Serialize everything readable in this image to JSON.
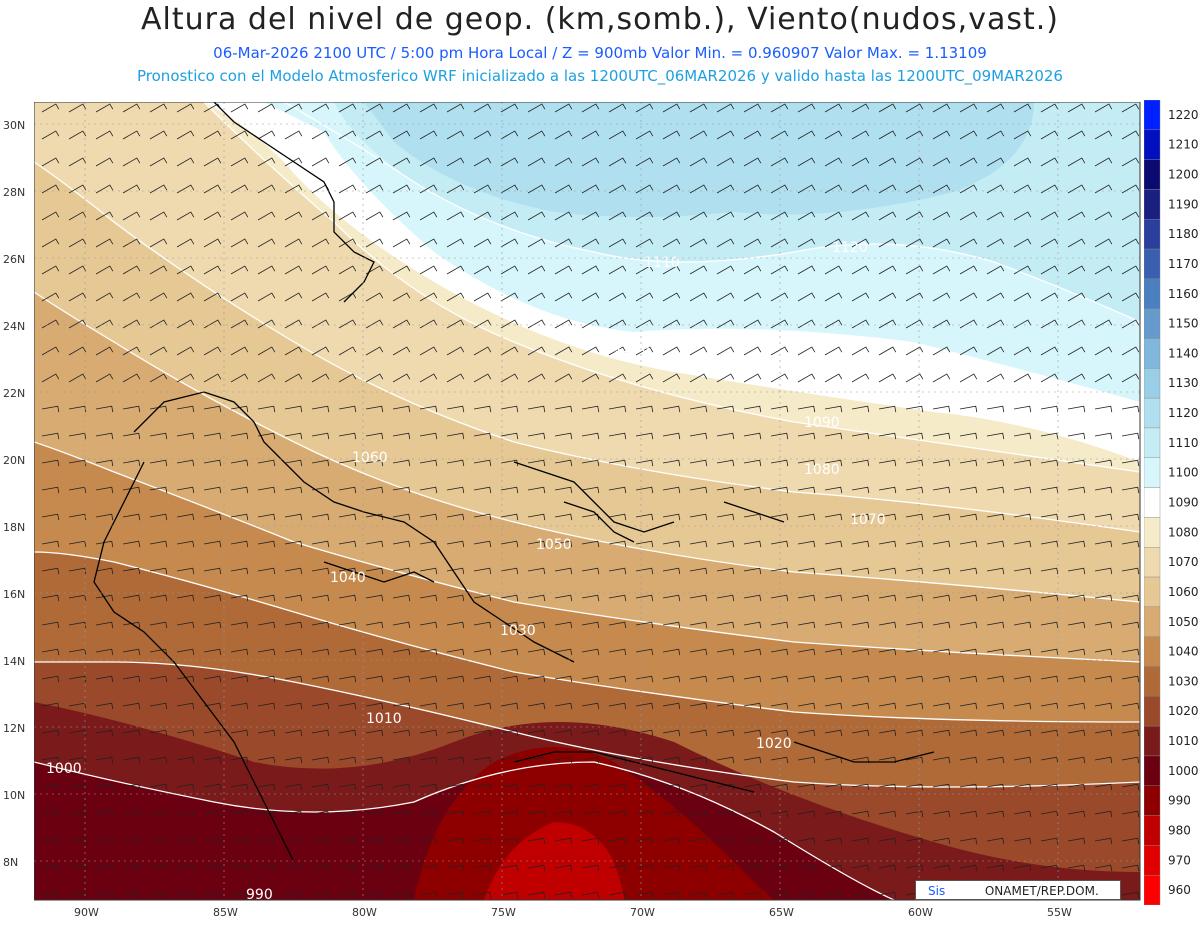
{
  "header": {
    "title": "Altura del nivel de geop. (km,somb.), Viento(nudos,vast.)",
    "line1": "06-Mar-2026  2100 UTC / 5:00 pm Hora Local / Z = 900mb    Valor Min. = 0.960907  Valor Max. = 1.13109",
    "line2": "Pronostico con el Modelo Atmosferico WRF inicializado a las 1200UTC_06MAR2026 y valido hasta las  1200UTC_09MAR2026"
  },
  "axes": {
    "lat_labels": [
      "30N",
      "28N",
      "26N",
      "24N",
      "22N",
      "20N",
      "18N",
      "16N",
      "14N",
      "12N",
      "10N",
      "8N"
    ],
    "lon_labels": [
      "90W",
      "85W",
      "80W",
      "75W",
      "70W",
      "65W",
      "60W",
      "55W"
    ]
  },
  "contour_labels": [
    "1120",
    "1110",
    "1100",
    "1090",
    "1080",
    "1070",
    "1060",
    "1050",
    "1040",
    "1030",
    "1020",
    "1010",
    "1000",
    "990"
  ],
  "colorbar": {
    "levels": [
      "960",
      "970",
      "980",
      "990",
      "1000",
      "1010",
      "1020",
      "1030",
      "1040",
      "1050",
      "1060",
      "1070",
      "1080",
      "1090",
      "1100",
      "1110",
      "1120",
      "1130",
      "1140",
      "1150",
      "1160",
      "1170",
      "1180",
      "1190",
      "1200",
      "1210",
      "1220"
    ],
    "colors": [
      "#ff0000",
      "#e00000",
      "#c00000",
      "#8e0000",
      "#6b0010",
      "#7a1a1a",
      "#9a4a2a",
      "#b06a38",
      "#c68a4e",
      "#d8ab72",
      "#e6c894",
      "#efdab0",
      "#f6ebc9",
      "#ffffff",
      "#d6f6fb",
      "#c4ecf5",
      "#b0e0ef",
      "#98cfe6",
      "#7fb8dc",
      "#6699cc",
      "#4a7fc0",
      "#3a5fb0",
      "#2a3f9c",
      "#1a2080",
      "#0a0a70",
      "#0010c0",
      "#0020ff"
    ]
  },
  "credit": {
    "left": "Sis",
    "right": "ONAMET/REP.DOM."
  }
}
